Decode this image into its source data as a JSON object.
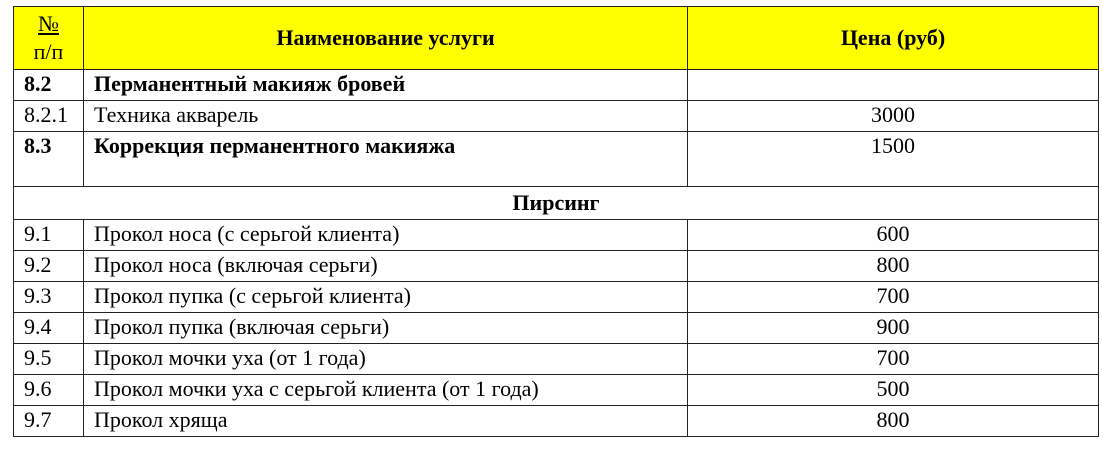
{
  "header": {
    "num": "№",
    "num2": "п/п",
    "name": "Наименование услуги",
    "price": "Цена (руб)"
  },
  "colors": {
    "header_bg": "#ffff00"
  },
  "rows_top": [
    {
      "num": "8.2",
      "name": "Перманентный макияж бровей",
      "price": "",
      "bold": true
    },
    {
      "num": "8.2.1",
      "name": "Техника акварель",
      "price": "3000",
      "bold": false
    },
    {
      "num": "8.3",
      "name": "Коррекция перманентного макияжа",
      "price": "1500",
      "bold": true
    }
  ],
  "section": "Пирсинг",
  "rows": [
    {
      "num": "9.1",
      "name": "Прокол носа (с серьгой клиента)",
      "price": "600"
    },
    {
      "num": "9.2",
      "name": "Прокол носа (включая серьги)",
      "price": "800"
    },
    {
      "num": "9.3",
      "name": "Прокол пупка (с серьгой клиента)",
      "price": "700"
    },
    {
      "num": "9.4",
      "name": "Прокол пупка (включая серьги)",
      "price": "900"
    },
    {
      "num": "9.5",
      "name": "Прокол мочки уха (от 1 года)",
      "price": "700"
    },
    {
      "num": "9.6",
      "name": "Прокол мочки уха с серьгой клиента (от 1 года)",
      "price": "500"
    },
    {
      "num": "9.7",
      "name": "Прокол хряща",
      "price": "800"
    }
  ]
}
